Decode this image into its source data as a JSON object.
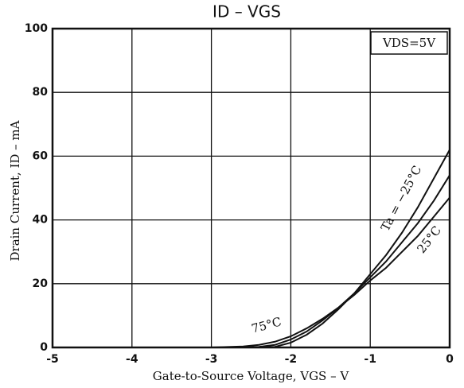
{
  "chart_data": {
    "type": "line",
    "title": "ID – VGS",
    "x_label": "Gate-to-Source Voltage, VGS – V",
    "y_label": "Drain Current, ID – mA",
    "annotations": [
      "VDS=5V"
    ],
    "x": [
      -3,
      -2.6,
      -2.4,
      -2.2,
      -2.0,
      -1.8,
      -1.6,
      -1.4,
      -1.2,
      -1.0,
      -0.8,
      -0.6,
      -0.4,
      -0.2,
      0
    ],
    "series": [
      {
        "name": "Ta = −25°C",
        "color": "#111111",
        "values": [
          0,
          0,
          0,
          0.2,
          1.5,
          4,
          7.5,
          12,
          17,
          23,
          29,
          36,
          44,
          53,
          62
        ]
      },
      {
        "name": "25°C",
        "color": "#111111",
        "values": [
          0,
          0,
          0.2,
          0.8,
          2.5,
          5,
          8.5,
          12.5,
          17,
          22,
          27,
          33,
          39,
          46,
          54
        ]
      },
      {
        "name": "75°C",
        "color": "#111111",
        "values": [
          0,
          0.3,
          0.8,
          1.8,
          3.5,
          6,
          9,
          12.5,
          16.5,
          21,
          25,
          30,
          35,
          41,
          47
        ]
      }
    ],
    "xlim": [
      -5,
      0
    ],
    "xticks": [
      -5,
      -4,
      -3,
      -2,
      -1,
      0
    ],
    "ylim": [
      0,
      100
    ],
    "yticks": [
      0,
      20,
      40,
      60,
      80,
      100
    ],
    "grid": true
  }
}
